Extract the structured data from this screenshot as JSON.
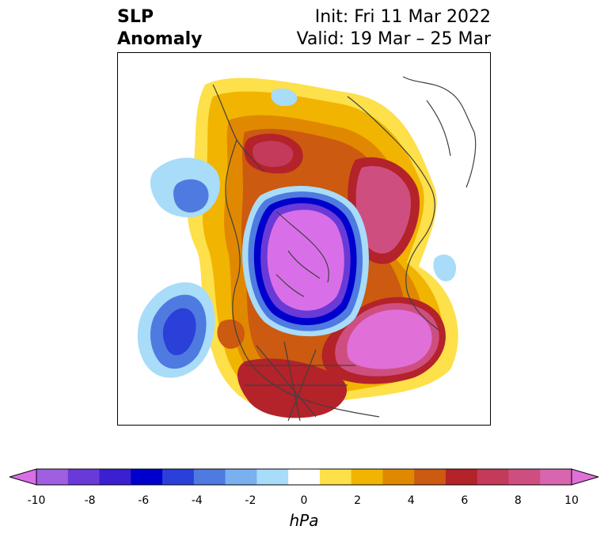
{
  "title": {
    "left_line1": "SLP",
    "left_line2": "Anomaly",
    "right_line1": "Init: Fri 11 Mar 2022",
    "right_line2": "Valid: 19 Mar – 25 Mar"
  },
  "colorbar": {
    "units": "hPa",
    "ticks": [
      "-10",
      "-8",
      "-6",
      "-4",
      "-2",
      "0",
      "2",
      "4",
      "6",
      "8",
      "10"
    ],
    "colors": [
      "#d96fe8",
      "#a05fe0",
      "#6a3ad8",
      "#3a20d0",
      "#0000cc",
      "#2a40d8",
      "#4f7ae0",
      "#7ab0f0",
      "#a8dcf8",
      "#ffffff",
      "#fde04a",
      "#f1b400",
      "#e08800",
      "#cc5a10",
      "#b4222a",
      "#c43a5a",
      "#cf4e80",
      "#d865b0",
      "#e070d8"
    ]
  }
}
